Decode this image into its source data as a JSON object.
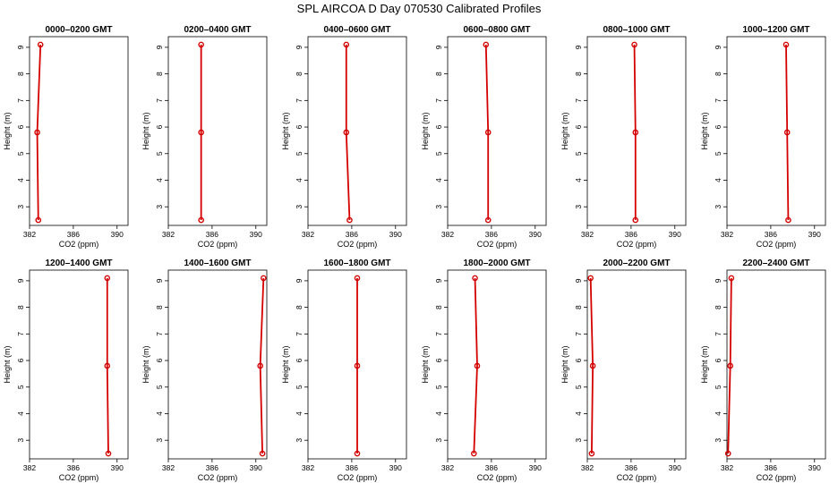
{
  "title": "SPL AIRCOA D  Day 070530  Calibrated Profiles",
  "colors": {
    "series": "#d40000",
    "axis": "#000000"
  },
  "chart_data": [
    {
      "type": "line",
      "title": "0000–0200 GMT",
      "xlabel": "CO2 (ppm)",
      "ylabel": "Height (m)",
      "xlim": [
        382,
        391
      ],
      "ylim": [
        2.3,
        9.4
      ],
      "xticks": [
        382,
        386,
        390
      ],
      "xtick_labels": [
        "382",
        "386",
        "390"
      ],
      "yticks": [
        3,
        4,
        5,
        6,
        7,
        8,
        9
      ],
      "ytick_labels": [
        "3",
        "4",
        "5",
        "6",
        "7",
        "8",
        "9"
      ],
      "series": [
        {
          "x": [
            382.8,
            382.7,
            383.0
          ],
          "y": [
            2.5,
            5.8,
            9.1
          ]
        }
      ]
    },
    {
      "type": "line",
      "title": "0200–0400 GMT",
      "xlabel": "CO2 (ppm)",
      "ylabel": "Height (m)",
      "xlim": [
        382,
        391
      ],
      "ylim": [
        2.3,
        9.4
      ],
      "xticks": [
        382,
        386,
        390
      ],
      "xtick_labels": [
        "382",
        "386",
        "390"
      ],
      "yticks": [
        3,
        4,
        5,
        6,
        7,
        8,
        9
      ],
      "ytick_labels": [
        "3",
        "4",
        "5",
        "6",
        "7",
        "8",
        "9"
      ],
      "series": [
        {
          "x": [
            385.0,
            385.0,
            385.0
          ],
          "y": [
            2.5,
            5.8,
            9.1
          ]
        }
      ]
    },
    {
      "type": "line",
      "title": "0400–0600 GMT",
      "xlabel": "CO2 (ppm)",
      "ylabel": "Height (m)",
      "xlim": [
        382,
        391
      ],
      "ylim": [
        2.3,
        9.4
      ],
      "xticks": [
        382,
        386,
        390
      ],
      "xtick_labels": [
        "382",
        "386",
        "390"
      ],
      "yticks": [
        3,
        4,
        5,
        6,
        7,
        8,
        9
      ],
      "ytick_labels": [
        "3",
        "4",
        "5",
        "6",
        "7",
        "8",
        "9"
      ],
      "series": [
        {
          "x": [
            385.8,
            385.5,
            385.5
          ],
          "y": [
            2.5,
            5.8,
            9.1
          ]
        }
      ]
    },
    {
      "type": "line",
      "title": "0600–0800 GMT",
      "xlabel": "CO2 (ppm)",
      "ylabel": "Height (m)",
      "xlim": [
        382,
        391
      ],
      "ylim": [
        2.3,
        9.4
      ],
      "xticks": [
        382,
        386,
        390
      ],
      "xtick_labels": [
        "382",
        "386",
        "390"
      ],
      "yticks": [
        3,
        4,
        5,
        6,
        7,
        8,
        9
      ],
      "ytick_labels": [
        "3",
        "4",
        "5",
        "6",
        "7",
        "8",
        "9"
      ],
      "series": [
        {
          "x": [
            385.7,
            385.7,
            385.5
          ],
          "y": [
            2.5,
            5.8,
            9.1
          ]
        }
      ]
    },
    {
      "type": "line",
      "title": "0800–1000 GMT",
      "xlabel": "CO2 (ppm)",
      "ylabel": "Height (m)",
      "xlim": [
        382,
        391
      ],
      "ylim": [
        2.3,
        9.4
      ],
      "xticks": [
        382,
        386,
        390
      ],
      "xtick_labels": [
        "382",
        "386",
        "390"
      ],
      "yticks": [
        3,
        4,
        5,
        6,
        7,
        8,
        9
      ],
      "ytick_labels": [
        "3",
        "4",
        "5",
        "6",
        "7",
        "8",
        "9"
      ],
      "series": [
        {
          "x": [
            386.4,
            386.4,
            386.3
          ],
          "y": [
            2.5,
            5.8,
            9.1
          ]
        }
      ]
    },
    {
      "type": "line",
      "title": "1000–1200 GMT",
      "xlabel": "CO2 (ppm)",
      "ylabel": "Height (m)",
      "xlim": [
        382,
        391
      ],
      "ylim": [
        2.3,
        9.4
      ],
      "xticks": [
        382,
        386,
        390
      ],
      "xtick_labels": [
        "382",
        "386",
        "390"
      ],
      "yticks": [
        3,
        4,
        5,
        6,
        7,
        8,
        9
      ],
      "ytick_labels": [
        "3",
        "4",
        "5",
        "6",
        "7",
        "8",
        "9"
      ],
      "series": [
        {
          "x": [
            387.6,
            387.5,
            387.4
          ],
          "y": [
            2.5,
            5.8,
            9.1
          ]
        }
      ]
    },
    {
      "type": "line",
      "title": "1200–1400 GMT",
      "xlabel": "CO2 (ppm)",
      "ylabel": "Height (m)",
      "xlim": [
        382,
        391
      ],
      "ylim": [
        2.3,
        9.4
      ],
      "xticks": [
        382,
        386,
        390
      ],
      "xtick_labels": [
        "382",
        "386",
        "390"
      ],
      "yticks": [
        3,
        4,
        5,
        6,
        7,
        8,
        9
      ],
      "ytick_labels": [
        "3",
        "4",
        "5",
        "6",
        "7",
        "8",
        "9"
      ],
      "series": [
        {
          "x": [
            389.2,
            389.1,
            389.1
          ],
          "y": [
            2.5,
            5.8,
            9.1
          ]
        }
      ]
    },
    {
      "type": "line",
      "title": "1400–1600 GMT",
      "xlabel": "CO2 (ppm)",
      "ylabel": "Height (m)",
      "xlim": [
        382,
        391
      ],
      "ylim": [
        2.3,
        9.4
      ],
      "xticks": [
        382,
        386,
        390
      ],
      "xtick_labels": [
        "382",
        "386",
        "390"
      ],
      "yticks": [
        3,
        4,
        5,
        6,
        7,
        8,
        9
      ],
      "ytick_labels": [
        "3",
        "4",
        "5",
        "6",
        "7",
        "8",
        "9"
      ],
      "series": [
        {
          "x": [
            390.6,
            390.4,
            390.7
          ],
          "y": [
            2.5,
            5.8,
            9.1
          ]
        }
      ]
    },
    {
      "type": "line",
      "title": "1600–1800 GMT",
      "xlabel": "CO2 (ppm)",
      "ylabel": "Height (m)",
      "xlim": [
        382,
        391
      ],
      "ylim": [
        2.3,
        9.4
      ],
      "xticks": [
        382,
        386,
        390
      ],
      "xtick_labels": [
        "382",
        "386",
        "390"
      ],
      "yticks": [
        3,
        4,
        5,
        6,
        7,
        8,
        9
      ],
      "ytick_labels": [
        "3",
        "4",
        "5",
        "6",
        "7",
        "8",
        "9"
      ],
      "series": [
        {
          "x": [
            386.5,
            386.5,
            386.5
          ],
          "y": [
            2.5,
            5.8,
            9.1
          ]
        }
      ]
    },
    {
      "type": "line",
      "title": "1800–2000 GMT",
      "xlabel": "CO2 (ppm)",
      "ylabel": "Height (m)",
      "xlim": [
        382,
        391
      ],
      "ylim": [
        2.3,
        9.4
      ],
      "xticks": [
        382,
        386,
        390
      ],
      "xtick_labels": [
        "382",
        "386",
        "390"
      ],
      "yticks": [
        3,
        4,
        5,
        6,
        7,
        8,
        9
      ],
      "ytick_labels": [
        "3",
        "4",
        "5",
        "6",
        "7",
        "8",
        "9"
      ],
      "series": [
        {
          "x": [
            384.4,
            384.7,
            384.5
          ],
          "y": [
            2.5,
            5.8,
            9.1
          ]
        }
      ]
    },
    {
      "type": "line",
      "title": "2000–2200 GMT",
      "xlabel": "CO2 (ppm)",
      "ylabel": "Height (m)",
      "xlim": [
        382,
        391
      ],
      "ylim": [
        2.3,
        9.4
      ],
      "xticks": [
        382,
        386,
        390
      ],
      "xtick_labels": [
        "382",
        "386",
        "390"
      ],
      "yticks": [
        3,
        4,
        5,
        6,
        7,
        8,
        9
      ],
      "ytick_labels": [
        "3",
        "4",
        "5",
        "6",
        "7",
        "8",
        "9"
      ],
      "series": [
        {
          "x": [
            382.4,
            382.5,
            382.3
          ],
          "y": [
            2.5,
            5.8,
            9.1
          ]
        }
      ]
    },
    {
      "type": "line",
      "title": "2200–2400 GMT",
      "xlabel": "CO2 (ppm)",
      "ylabel": "Height (m)",
      "xlim": [
        382,
        391
      ],
      "ylim": [
        2.3,
        9.4
      ],
      "xticks": [
        382,
        386,
        390
      ],
      "xtick_labels": [
        "382",
        "386",
        "390"
      ],
      "yticks": [
        3,
        4,
        5,
        6,
        7,
        8,
        9
      ],
      "ytick_labels": [
        "3",
        "4",
        "5",
        "6",
        "7",
        "8",
        "9"
      ],
      "series": [
        {
          "x": [
            382.1,
            382.3,
            382.4
          ],
          "y": [
            2.5,
            5.8,
            9.1
          ]
        }
      ]
    }
  ]
}
